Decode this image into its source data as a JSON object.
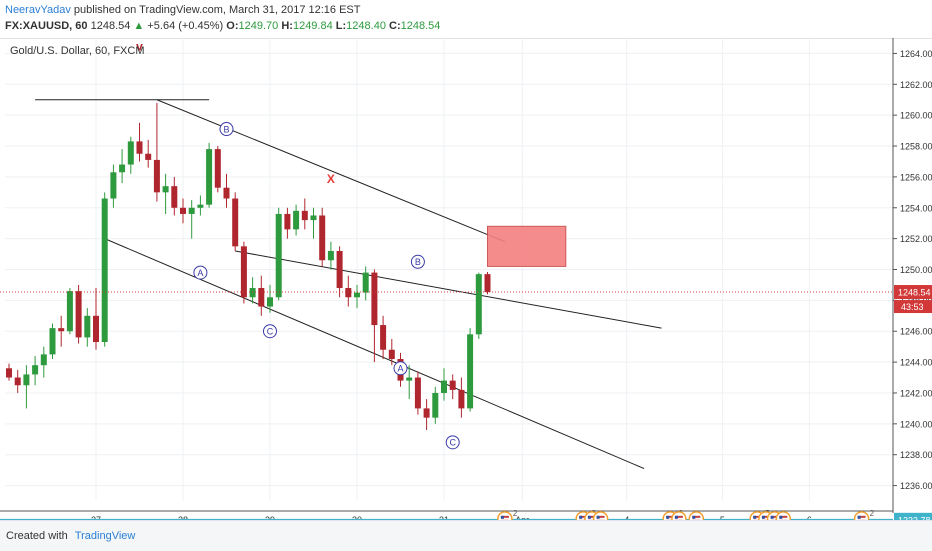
{
  "header": {
    "author": "NeeravYadav",
    "published": "published on TradingView.com, March 31, 2017 12:16 EST",
    "symbol": "FX:XAUUSD, 60",
    "last": "1248.54",
    "change_arrow": "▲",
    "change": "+5.64 (+0.45%)",
    "o_label": "O:",
    "o": "1249.70",
    "h_label": "H:",
    "h": "1249.84",
    "l_label": "L:",
    "l": "1248.40",
    "c_label": "C:",
    "c": "1248.54"
  },
  "chart_data": {
    "type": "candlestick",
    "title": "Gold/U.S. Dollar, 60, FXCM",
    "y_range": [
      1235,
      1265
    ],
    "y_ticks": [
      "1264.00",
      "1262.00",
      "1260.00",
      "1258.00",
      "1256.00",
      "1254.00",
      "1252.00",
      "1250.00",
      "1248.00",
      "1246.00",
      "1244.00",
      "1242.00",
      "1240.00",
      "1238.00",
      "1236.00"
    ],
    "x_ticks": [
      {
        "label": "27",
        "i": 10
      },
      {
        "label": "28",
        "i": 20
      },
      {
        "label": "29",
        "i": 30
      },
      {
        "label": "30",
        "i": 40
      },
      {
        "label": "31",
        "i": 50
      },
      {
        "label": "Apr",
        "i": 59
      },
      {
        "label": "4",
        "i": 71
      },
      {
        "label": "5",
        "i": 82
      },
      {
        "label": "6",
        "i": 92
      }
    ],
    "last_price_label": "1248.54",
    "countdown_label": "43:53",
    "low_line_label": "1233.78",
    "low_line_value": 1233.78,
    "candles": [
      [
        1243.6,
        1243.9,
        1242.8,
        1243.0
      ],
      [
        1243.0,
        1243.5,
        1242.0,
        1242.5
      ],
      [
        1242.5,
        1243.8,
        1241.0,
        1243.2
      ],
      [
        1243.2,
        1244.4,
        1242.5,
        1243.8
      ],
      [
        1243.8,
        1245.0,
        1243.0,
        1244.5
      ],
      [
        1244.5,
        1246.5,
        1244.2,
        1246.2
      ],
      [
        1246.2,
        1247.0,
        1245.0,
        1246.0
      ],
      [
        1246.0,
        1248.8,
        1245.8,
        1248.6
      ],
      [
        1248.6,
        1249.0,
        1245.2,
        1245.6
      ],
      [
        1245.6,
        1247.5,
        1245.0,
        1247.0
      ],
      [
        1247.0,
        1248.8,
        1244.8,
        1245.3
      ],
      [
        1245.3,
        1255.0,
        1245.0,
        1254.6
      ],
      [
        1254.6,
        1256.8,
        1254.0,
        1256.3
      ],
      [
        1256.3,
        1257.8,
        1255.6,
        1256.8
      ],
      [
        1256.8,
        1258.6,
        1256.2,
        1258.3
      ],
      [
        1258.3,
        1259.5,
        1257.0,
        1257.5
      ],
      [
        1257.5,
        1258.4,
        1256.6,
        1257.1
      ],
      [
        1257.1,
        1260.8,
        1254.4,
        1255.0
      ],
      [
        1255.0,
        1256.2,
        1253.6,
        1255.4
      ],
      [
        1255.4,
        1256.0,
        1253.5,
        1254.0
      ],
      [
        1254.0,
        1254.6,
        1253.0,
        1253.6
      ],
      [
        1253.6,
        1254.5,
        1252.0,
        1254.0
      ],
      [
        1254.0,
        1254.8,
        1253.5,
        1254.2
      ],
      [
        1254.2,
        1258.2,
        1254.0,
        1257.8
      ],
      [
        1257.8,
        1258.0,
        1255.0,
        1255.3
      ],
      [
        1255.3,
        1256.2,
        1254.0,
        1254.6
      ],
      [
        1254.6,
        1255.0,
        1251.2,
        1251.5
      ],
      [
        1251.5,
        1251.8,
        1247.8,
        1248.2
      ],
      [
        1248.2,
        1249.5,
        1247.8,
        1248.8
      ],
      [
        1248.8,
        1249.6,
        1247.0,
        1247.6
      ],
      [
        1247.6,
        1249.0,
        1247.2,
        1248.2
      ],
      [
        1248.2,
        1254.0,
        1248.0,
        1253.6
      ],
      [
        1253.6,
        1254.0,
        1252.0,
        1252.6
      ],
      [
        1252.6,
        1254.2,
        1252.2,
        1253.8
      ],
      [
        1253.8,
        1254.6,
        1252.6,
        1253.2
      ],
      [
        1253.2,
        1254.0,
        1252.0,
        1253.5
      ],
      [
        1253.5,
        1254.0,
        1250.2,
        1250.6
      ],
      [
        1250.6,
        1251.8,
        1250.0,
        1251.2
      ],
      [
        1251.2,
        1251.5,
        1248.2,
        1248.8
      ],
      [
        1248.8,
        1249.6,
        1247.6,
        1248.2
      ],
      [
        1248.2,
        1249.0,
        1247.5,
        1248.5
      ],
      [
        1248.5,
        1250.2,
        1248.0,
        1249.8
      ],
      [
        1249.8,
        1250.0,
        1244.0,
        1246.4
      ],
      [
        1246.4,
        1247.0,
        1244.2,
        1244.8
      ],
      [
        1244.8,
        1245.5,
        1243.8,
        1244.2
      ],
      [
        1244.2,
        1244.6,
        1242.4,
        1242.8
      ],
      [
        1242.8,
        1243.8,
        1241.6,
        1243.0
      ],
      [
        1243.0,
        1243.4,
        1240.6,
        1241.0
      ],
      [
        1241.0,
        1241.6,
        1239.6,
        1240.4
      ],
      [
        1240.4,
        1242.4,
        1240.0,
        1242.0
      ],
      [
        1242.0,
        1243.6,
        1241.5,
        1242.8
      ],
      [
        1242.8,
        1243.2,
        1241.6,
        1242.2
      ],
      [
        1242.2,
        1243.0,
        1240.4,
        1241.0
      ],
      [
        1241.0,
        1246.2,
        1240.8,
        1245.8
      ],
      [
        1245.8,
        1249.8,
        1245.5,
        1249.7
      ],
      [
        1249.7,
        1249.84,
        1248.4,
        1248.54
      ]
    ],
    "channel_lines": [
      {
        "from": {
          "i": 17,
          "p": 1261.0
        },
        "to": {
          "i": 57,
          "p": 1251.8
        }
      },
      {
        "from": {
          "i": 26,
          "p": 1251.2
        },
        "to": {
          "i": 75,
          "p": 1246.2
        }
      },
      {
        "from": {
          "i": 11,
          "p": 1252.0
        },
        "to": {
          "i": 73,
          "p": 1237.1
        }
      },
      {
        "from": {
          "i": 3,
          "p": 1261.0
        },
        "to": {
          "i": 23,
          "p": 1261.0
        }
      }
    ],
    "zone": {
      "i0": 55,
      "i1": 64,
      "p0": 1250.2,
      "p1": 1252.8
    },
    "wave_labels": [
      {
        "text": "v",
        "i": 15,
        "p": 1264.2,
        "kind": "plain",
        "color": "#b0262e"
      },
      {
        "text": "B",
        "i": 25,
        "p": 1259.1,
        "kind": "circle"
      },
      {
        "text": "A",
        "i": 22,
        "p": 1249.8,
        "kind": "circle"
      },
      {
        "text": "C",
        "i": 30,
        "p": 1246.0,
        "kind": "circle"
      },
      {
        "text": "X",
        "i": 37,
        "p": 1255.6,
        "kind": "plain",
        "color": "#e53935"
      },
      {
        "text": "B",
        "i": 47,
        "p": 1250.5,
        "kind": "circle"
      },
      {
        "text": "A",
        "i": 45,
        "p": 1243.6,
        "kind": "circle"
      },
      {
        "text": "C",
        "i": 51,
        "p": 1238.8,
        "kind": "circle"
      }
    ],
    "event_markers": [
      {
        "i": 57,
        "n": "2"
      },
      {
        "i": 66,
        "n": "2"
      },
      {
        "i": 67,
        "n": ""
      },
      {
        "i": 68,
        "n": ""
      },
      {
        "i": 76,
        "n": "6"
      },
      {
        "i": 77,
        "n": ""
      },
      {
        "i": 79,
        "n": ""
      },
      {
        "i": 86,
        "n": "5"
      },
      {
        "i": 87,
        "n": ""
      },
      {
        "i": 88,
        "n": ""
      },
      {
        "i": 89,
        "n": ""
      },
      {
        "i": 98,
        "n": "2"
      }
    ],
    "colors": {
      "up": "#2e9a3e",
      "down": "#b0262e",
      "zone": "#f48080",
      "lastprice": "#d23838",
      "lowline": "#3fb3c9"
    }
  },
  "footer": {
    "created": "Created with",
    "brand": "TradingView"
  }
}
